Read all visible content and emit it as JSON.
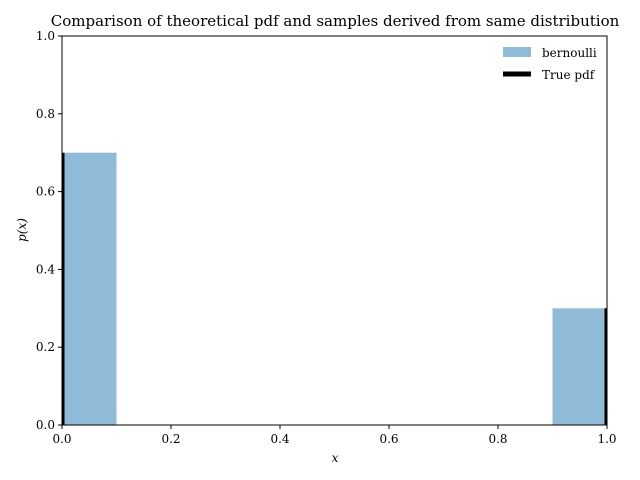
{
  "chart_data": {
    "type": "bar",
    "title": "Comparison of theoretical pdf and samples derived from same distribution",
    "xlabel": "x",
    "ylabel": "p(x)",
    "xlim": [
      0.0,
      1.0
    ],
    "ylim": [
      0.0,
      1.0
    ],
    "xticks": [
      "0.0",
      "0.2",
      "0.4",
      "0.6",
      "0.8",
      "1.0"
    ],
    "yticks": [
      "0.0",
      "0.2",
      "0.4",
      "0.6",
      "0.8",
      "1.0"
    ],
    "grid": false,
    "legend_position": "top-right",
    "series": [
      {
        "name": "bernoulli",
        "kind": "histogram",
        "color": "#8fbbd9",
        "bins": [
          {
            "x0": 0.0,
            "x1": 0.1,
            "value": 0.7
          },
          {
            "x0": 0.9,
            "x1": 1.0,
            "value": 0.3
          }
        ]
      },
      {
        "name": "True pdf",
        "kind": "vlines",
        "color": "#000000",
        "points": [
          {
            "x": 0.0,
            "value": 0.7
          },
          {
            "x": 1.0,
            "value": 0.3
          }
        ]
      }
    ]
  }
}
